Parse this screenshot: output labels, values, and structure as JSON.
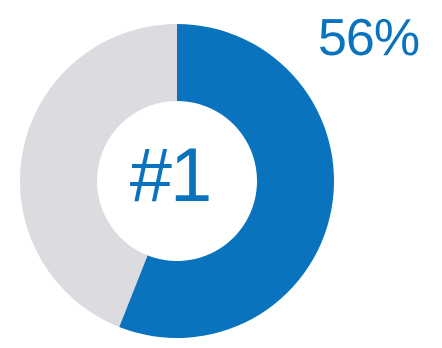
{
  "chart_data": {
    "type": "pie",
    "style": "donut",
    "categories": [
      "highlighted",
      "remainder"
    ],
    "values": [
      56,
      44
    ],
    "center_label": "#1",
    "value_label": "56%",
    "colors": {
      "highlighted": "#0a73be",
      "remainder": "#dcdce0",
      "text": "#0a73be"
    }
  }
}
